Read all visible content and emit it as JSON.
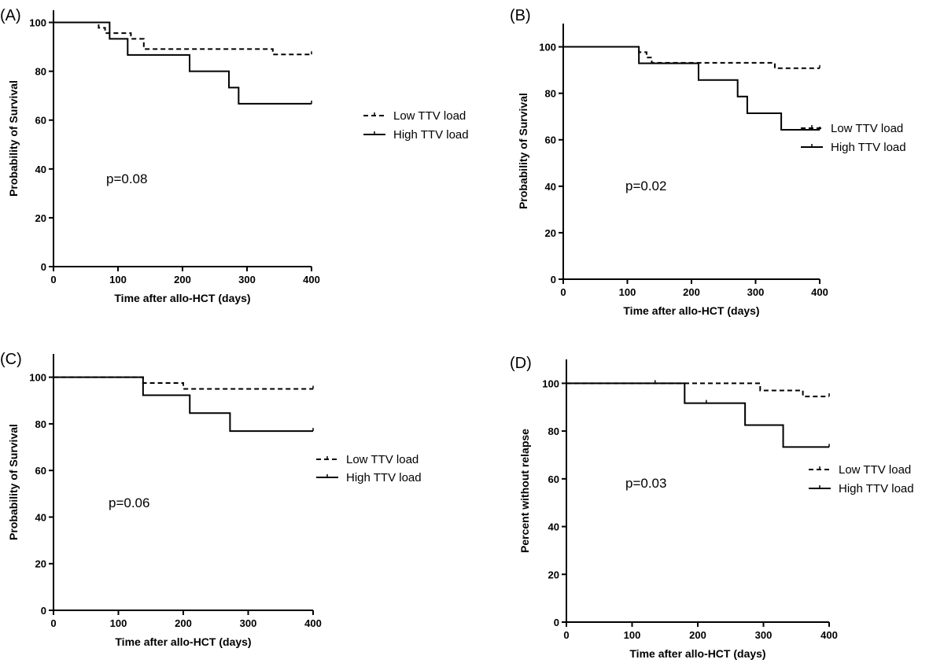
{
  "chart_data": [
    {
      "panel_label": "(A)",
      "type": "line",
      "step": true,
      "xlabel": "Time after allo-HCT (days)",
      "ylabel": "Probability of Survival",
      "xlim": [
        0,
        400
      ],
      "ylim": [
        0,
        105
      ],
      "xticks": [
        0,
        100,
        200,
        300,
        400
      ],
      "yticks": [
        0,
        20,
        40,
        60,
        80,
        100
      ],
      "annotation": "p=0.08",
      "legend_position": "right",
      "grid": false,
      "series": [
        {
          "name": "Low TTV load",
          "style": "dashed",
          "x": [
            0,
            70,
            80,
            120,
            140,
            340,
            400
          ],
          "y": [
            100,
            97.8,
            95.6,
            93.3,
            89.1,
            86.9,
            86.9
          ],
          "censored_x": [
            400
          ]
        },
        {
          "name": "High TTV load",
          "style": "solid",
          "x": [
            0,
            87,
            115,
            211,
            272,
            287,
            400
          ],
          "y": [
            100,
            93.3,
            86.7,
            80,
            73.3,
            66.7,
            66.7
          ],
          "censored_x": [
            400
          ]
        }
      ]
    },
    {
      "panel_label": "(B)",
      "type": "line",
      "step": true,
      "xlabel": "Time after allo-HCT (days)",
      "ylabel": "Probability of Survival",
      "xlim": [
        0,
        400
      ],
      "ylim": [
        0,
        110
      ],
      "xticks": [
        0,
        100,
        200,
        300,
        400
      ],
      "yticks": [
        0,
        20,
        40,
        60,
        80,
        100
      ],
      "annotation": "p=0.02",
      "legend_position": "right",
      "grid": false,
      "series": [
        {
          "name": "Low TTV load",
          "style": "dashed",
          "x": [
            0,
            118,
            130,
            138,
            330,
            400
          ],
          "y": [
            100,
            97.7,
            95.4,
            93.1,
            90.8,
            90.8
          ],
          "censored_x": [
            400
          ]
        },
        {
          "name": "High TTV load",
          "style": "solid",
          "x": [
            0,
            118,
            211,
            272,
            287,
            340,
            400
          ],
          "y": [
            100,
            92.9,
            85.7,
            78.6,
            71.4,
            64.3,
            64.3
          ],
          "censored_x": [
            400
          ]
        }
      ]
    },
    {
      "panel_label": "(C)",
      "type": "line",
      "step": true,
      "xlabel": "Time after allo-HCT (days)",
      "ylabel": "Probability of Survival",
      "xlim": [
        0,
        400
      ],
      "ylim": [
        0,
        110
      ],
      "xticks": [
        0,
        100,
        200,
        300,
        400
      ],
      "yticks": [
        0,
        20,
        40,
        60,
        80,
        100
      ],
      "annotation": "p=0.06",
      "legend_position": "right",
      "grid": false,
      "series": [
        {
          "name": "Low TTV load",
          "style": "dashed",
          "x": [
            0,
            138,
            200,
            400
          ],
          "y": [
            100,
            97.5,
            95,
            95
          ],
          "censored_x": [
            400
          ]
        },
        {
          "name": "High TTV load",
          "style": "solid",
          "x": [
            0,
            138,
            210,
            272,
            400
          ],
          "y": [
            100,
            92.3,
            84.6,
            76.9,
            76.9
          ],
          "censored_x": [
            400
          ]
        }
      ]
    },
    {
      "panel_label": "(D)",
      "type": "line",
      "step": true,
      "xlabel": "Time after allo-HCT (days)",
      "ylabel": "Percent without relapse",
      "xlim": [
        0,
        400
      ],
      "ylim": [
        0,
        110
      ],
      "xticks": [
        0,
        100,
        200,
        300,
        400
      ],
      "yticks": [
        0,
        20,
        40,
        60,
        80,
        100
      ],
      "annotation": "p=0.03",
      "legend_position": "right",
      "grid": false,
      "series": [
        {
          "name": "Low TTV load",
          "style": "dashed",
          "x": [
            0,
            295,
            360,
            400
          ],
          "y": [
            100,
            97,
            94.5,
            94.5
          ],
          "censored_x": [
            135,
            400
          ]
        },
        {
          "name": "High TTV load",
          "style": "solid",
          "x": [
            0,
            180,
            272,
            330,
            400
          ],
          "y": [
            100,
            91.7,
            82.5,
            73.3,
            73.3
          ],
          "censored_x": [
            213,
            400
          ]
        }
      ]
    }
  ]
}
